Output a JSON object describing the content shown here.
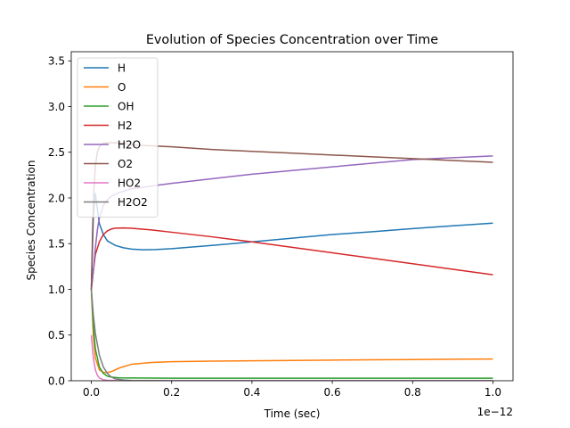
{
  "chart_data": {
    "type": "line",
    "title": "Evolution of Species Concentration over Time",
    "xlabel": "Time (sec)",
    "ylabel": "Species Concentration",
    "x_offset_label": "1e−12",
    "xlim": [
      -0.05,
      1.05
    ],
    "ylim": [
      0.0,
      3.6
    ],
    "xticks": [
      0.0,
      0.2,
      0.4,
      0.6,
      0.8,
      1.0
    ],
    "xtick_labels": [
      "0.0",
      "0.2",
      "0.4",
      "0.6",
      "0.8",
      "1.0"
    ],
    "yticks": [
      0.0,
      0.5,
      1.0,
      1.5,
      2.0,
      2.5,
      3.0,
      3.5
    ],
    "ytick_labels": [
      "0.0",
      "0.5",
      "1.0",
      "1.5",
      "2.0",
      "2.5",
      "3.0",
      "3.5"
    ],
    "grid": false,
    "legend_position": "upper-left",
    "series": [
      {
        "name": "H",
        "color": "#1f77b4",
        "x": [
          0.0,
          0.005,
          0.01,
          0.015,
          0.02,
          0.03,
          0.04,
          0.06,
          0.08,
          0.1,
          0.13,
          0.16,
          0.2,
          0.3,
          0.4,
          0.5,
          0.6,
          0.7,
          0.8,
          0.9,
          1.0
        ],
        "y": [
          1.0,
          1.8,
          2.05,
          1.88,
          1.72,
          1.6,
          1.53,
          1.48,
          1.455,
          1.44,
          1.433,
          1.435,
          1.445,
          1.48,
          1.52,
          1.56,
          1.6,
          1.63,
          1.665,
          1.695,
          1.725
        ]
      },
      {
        "name": "O",
        "color": "#ff7f0e",
        "x": [
          0.0,
          0.005,
          0.01,
          0.02,
          0.03,
          0.04,
          0.05,
          0.07,
          0.1,
          0.15,
          0.2,
          0.3,
          0.4,
          0.5,
          0.6,
          0.7,
          0.8,
          0.9,
          1.0
        ],
        "y": [
          1.0,
          0.5,
          0.25,
          0.12,
          0.09,
          0.09,
          0.1,
          0.14,
          0.18,
          0.2,
          0.208,
          0.214,
          0.218,
          0.222,
          0.226,
          0.229,
          0.232,
          0.235,
          0.238
        ]
      },
      {
        "name": "OH",
        "color": "#2ca02c",
        "x": [
          0.0,
          0.005,
          0.01,
          0.02,
          0.03,
          0.04,
          0.05,
          0.07,
          0.1,
          0.15,
          0.2,
          0.4,
          0.6,
          0.8,
          1.0
        ],
        "y": [
          1.0,
          0.6,
          0.35,
          0.15,
          0.08,
          0.05,
          0.04,
          0.032,
          0.03,
          0.029,
          0.028,
          0.028,
          0.028,
          0.028,
          0.028
        ]
      },
      {
        "name": "H2",
        "color": "#d62728",
        "x": [
          0.0,
          0.005,
          0.01,
          0.02,
          0.03,
          0.04,
          0.05,
          0.06,
          0.08,
          0.1,
          0.15,
          0.2,
          0.3,
          0.4,
          0.5,
          0.6,
          0.7,
          0.8,
          0.9,
          1.0
        ],
        "y": [
          1.0,
          1.2,
          1.38,
          1.52,
          1.6,
          1.64,
          1.66,
          1.67,
          1.672,
          1.668,
          1.65,
          1.625,
          1.575,
          1.52,
          1.46,
          1.4,
          1.34,
          1.28,
          1.22,
          1.16
        ]
      },
      {
        "name": "H2O",
        "color": "#9467bd",
        "x": [
          0.0,
          0.005,
          0.01,
          0.015,
          0.02,
          0.03,
          0.04,
          0.05,
          0.07,
          0.1,
          0.15,
          0.2,
          0.3,
          0.4,
          0.5,
          0.6,
          0.7,
          0.8,
          0.9,
          1.0
        ],
        "y": [
          1.0,
          1.2,
          1.45,
          1.65,
          1.78,
          1.92,
          1.98,
          2.02,
          2.06,
          2.1,
          2.13,
          2.16,
          2.21,
          2.26,
          2.3,
          2.34,
          2.38,
          2.42,
          2.44,
          2.46
        ]
      },
      {
        "name": "O2",
        "color": "#8c564b",
        "x": [
          0.0,
          0.003,
          0.006,
          0.01,
          0.015,
          0.02,
          0.03,
          0.05,
          0.08,
          0.1,
          0.2,
          0.3,
          0.4,
          0.5,
          0.6,
          0.7,
          0.8,
          0.9,
          1.0
        ],
        "y": [
          1.0,
          1.6,
          2.05,
          2.35,
          2.5,
          2.56,
          2.6,
          2.605,
          2.6,
          2.58,
          2.56,
          2.53,
          2.51,
          2.49,
          2.47,
          2.45,
          2.43,
          2.41,
          2.39
        ]
      },
      {
        "name": "HO2",
        "color": "#e377c2",
        "x": [
          0.0,
          0.005,
          0.01,
          0.015,
          0.02,
          0.03,
          0.04,
          0.06,
          0.08,
          0.1,
          0.2,
          0.4,
          0.6,
          0.8,
          1.0
        ],
        "y": [
          0.5,
          0.25,
          0.12,
          0.06,
          0.03,
          0.01,
          0.005,
          0.002,
          0.001,
          0.0,
          0.0,
          0.0,
          0.0,
          0.0,
          0.0
        ]
      },
      {
        "name": "H2O2",
        "color": "#7f7f7f",
        "x": [
          0.0,
          0.005,
          0.01,
          0.02,
          0.03,
          0.04,
          0.05,
          0.06,
          0.08,
          0.1,
          0.2,
          0.4,
          0.6,
          0.8,
          1.0
        ],
        "y": [
          1.0,
          0.72,
          0.52,
          0.28,
          0.15,
          0.08,
          0.04,
          0.02,
          0.008,
          0.003,
          0.0,
          0.0,
          0.0,
          0.0,
          0.0
        ]
      }
    ]
  }
}
